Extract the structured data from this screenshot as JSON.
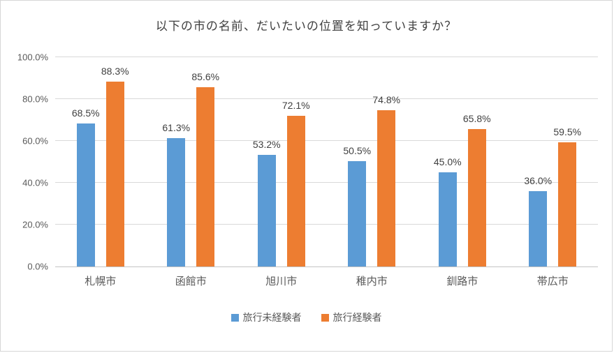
{
  "chart_data": {
    "type": "bar",
    "title": "以下の市の名前、だいたいの位置を知っていますか？",
    "categories": [
      "札幌市",
      "函館市",
      "旭川市",
      "稚内市",
      "釧路市",
      "帯広市"
    ],
    "series": [
      {
        "name": "旅行未経験者",
        "color": "#5B9BD5",
        "values": [
          68.5,
          61.3,
          53.2,
          50.5,
          45.0,
          36.0
        ],
        "labels": [
          "68.5%",
          "61.3%",
          "53.2%",
          "50.5%",
          "45.0%",
          "36.0%"
        ]
      },
      {
        "name": "旅行経験者",
        "color": "#ED7D31",
        "values": [
          88.3,
          85.6,
          72.1,
          74.8,
          65.8,
          59.5
        ],
        "labels": [
          "88.3%",
          "85.6%",
          "72.1%",
          "74.8%",
          "65.8%",
          "59.5%"
        ]
      }
    ],
    "ylim": [
      0,
      100
    ],
    "y_ticks": [
      "0.0%",
      "20.0%",
      "40.0%",
      "60.0%",
      "80.0%",
      "100.0%"
    ],
    "grid": true,
    "legend_position": "bottom"
  },
  "colors": {
    "gridline": "#d9d9d9",
    "axis_line": "#c3c3c3",
    "tick_text": "#595959",
    "title_text": "#404040"
  }
}
